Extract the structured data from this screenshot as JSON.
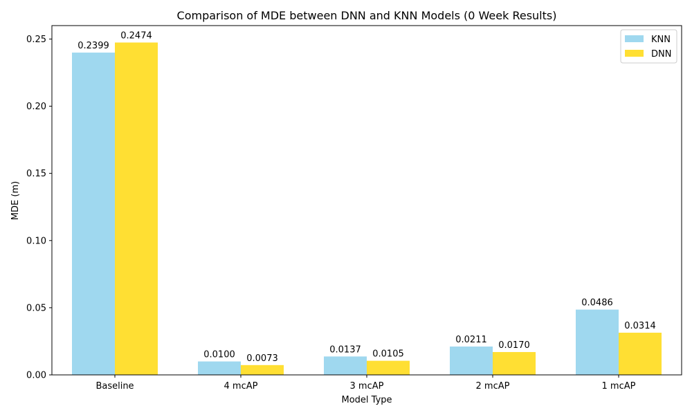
{
  "chart_data": {
    "type": "bar",
    "title": "Comparison of MDE between DNN and KNN Models (0 Week Results)",
    "xlabel": "Model Type",
    "ylabel": "MDE (m)",
    "categories": [
      "Baseline",
      "4 mcAP",
      "3 mcAP",
      "2 mcAP",
      "1 mcAP"
    ],
    "series": [
      {
        "name": "KNN",
        "color": "#87CEEB",
        "values": [
          0.2399,
          0.01,
          0.0137,
          0.0211,
          0.0486
        ],
        "labels": [
          "0.2399",
          "0.0100",
          "0.0137",
          "0.0211",
          "0.0486"
        ]
      },
      {
        "name": "DNN",
        "color": "#FFD700",
        "values": [
          0.2474,
          0.0073,
          0.0105,
          0.017,
          0.0314
        ],
        "labels": [
          "0.2474",
          "0.0073",
          "0.0105",
          "0.0170",
          "0.0314"
        ]
      }
    ],
    "ylim": [
      0,
      0.26
    ],
    "yticks": [
      0.0,
      0.05,
      0.1,
      0.15,
      0.2,
      0.25
    ],
    "ytick_labels": [
      "0.00",
      "0.05",
      "0.10",
      "0.15",
      "0.20",
      "0.25"
    ],
    "grid": false,
    "legend_position": "top-right"
  }
}
